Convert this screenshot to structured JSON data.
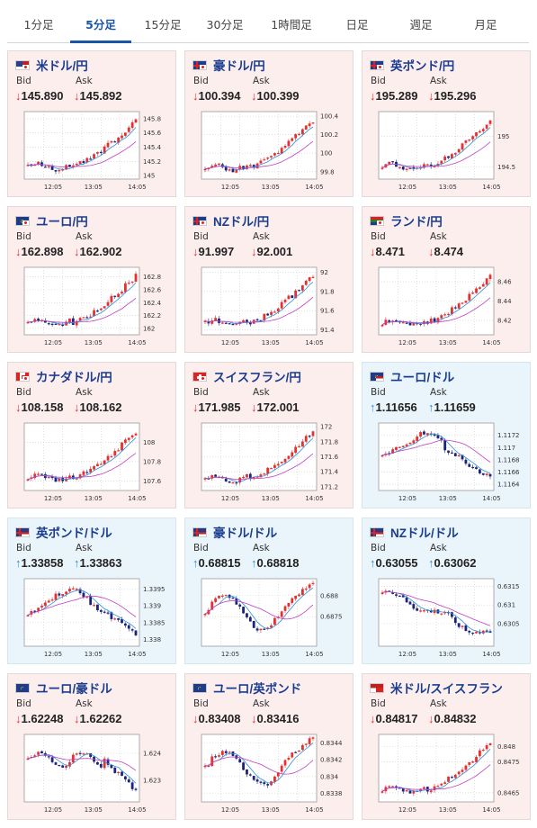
{
  "tabs": [
    {
      "label": "1分足",
      "active": false
    },
    {
      "label": "5分足",
      "active": true
    },
    {
      "label": "15分足",
      "active": false
    },
    {
      "label": "30分足",
      "active": false
    },
    {
      "label": "1時間足",
      "active": false
    },
    {
      "label": "日足",
      "active": false
    },
    {
      "label": "週足",
      "active": false
    },
    {
      "label": "月足",
      "active": false
    }
  ],
  "labels": {
    "bid": "Bid",
    "ask": "Ask"
  },
  "x_ticks": [
    "12:05",
    "13:05",
    "14:05"
  ],
  "colors": {
    "up_candle": "#e53030",
    "down_candle": "#1a237e",
    "ma_short": "#2b8fd6",
    "ma_long": "#c040c0",
    "title": "#1a3d8f",
    "panel_pink": "#fdeeee",
    "panel_blue": "#eaf4fb"
  },
  "cards": [
    {
      "pair": "米ドル/円",
      "flag": "us-flag",
      "theme": "pink",
      "bid": "145.890",
      "ask": "145.892",
      "direction": "down",
      "chart_data": {
        "type": "candlestick",
        "y_ticks": [
          "145.8",
          "145.6",
          "145.4",
          "145.2",
          "145"
        ],
        "ylim": [
          144.95,
          145.9
        ],
        "shape": "rise"
      }
    },
    {
      "pair": "豪ドル/円",
      "flag": "au-flag",
      "theme": "pink",
      "bid": "100.394",
      "ask": "100.399",
      "direction": "down",
      "chart_data": {
        "type": "candlestick",
        "y_ticks": [
          "100.4",
          "100.2",
          "100",
          "99.8"
        ],
        "ylim": [
          99.72,
          100.45
        ],
        "shape": "rise"
      }
    },
    {
      "pair": "英ポンド/円",
      "flag": "gb-flag",
      "theme": "pink",
      "bid": "195.289",
      "ask": "195.296",
      "direction": "down",
      "chart_data": {
        "type": "candlestick",
        "y_ticks": [
          "195",
          "194.5"
        ],
        "ylim": [
          194.3,
          195.4
        ],
        "shape": "rise"
      }
    },
    {
      "pair": "ユーロ/円",
      "flag": "eu-flag",
      "theme": "pink",
      "bid": "162.898",
      "ask": "162.902",
      "direction": "down",
      "chart_data": {
        "type": "candlestick",
        "y_ticks": [
          "162.8",
          "162.6",
          "162.4",
          "162.2",
          "162"
        ],
        "ylim": [
          161.9,
          162.95
        ],
        "shape": "rise"
      }
    },
    {
      "pair": "NZドル/円",
      "flag": "nz-flag",
      "theme": "pink",
      "bid": "91.997",
      "ask": "92.001",
      "direction": "down",
      "chart_data": {
        "type": "candlestick",
        "y_ticks": [
          "92",
          "91.8",
          "91.6",
          "91.4"
        ],
        "ylim": [
          91.35,
          92.05
        ],
        "shape": "rise"
      }
    },
    {
      "pair": "ランド/円",
      "flag": "za-flag",
      "theme": "pink",
      "bid": "8.471",
      "ask": "8.474",
      "direction": "down",
      "chart_data": {
        "type": "candlestick",
        "y_ticks": [
          "8.46",
          "8.44",
          "8.42"
        ],
        "ylim": [
          8.405,
          8.475
        ],
        "shape": "rise"
      }
    },
    {
      "pair": "カナダドル/円",
      "flag": "ca-flag",
      "theme": "pink",
      "bid": "108.158",
      "ask": "108.162",
      "direction": "down",
      "chart_data": {
        "type": "candlestick",
        "y_ticks": [
          "108",
          "107.8",
          "107.6"
        ],
        "ylim": [
          107.5,
          108.2
        ],
        "shape": "rise"
      }
    },
    {
      "pair": "スイスフラン/円",
      "flag": "ch-flag",
      "theme": "pink",
      "bid": "171.985",
      "ask": "172.001",
      "direction": "down",
      "chart_data": {
        "type": "candlestick",
        "y_ticks": [
          "172",
          "171.8",
          "171.6",
          "171.4",
          "171.2"
        ],
        "ylim": [
          171.15,
          172.05
        ],
        "shape": "rise"
      }
    },
    {
      "pair": "ユーロ/ドル",
      "flag": "eu-us-flag",
      "theme": "blue",
      "bid": "1.11656",
      "ask": "1.11659",
      "direction": "up",
      "chart_data": {
        "type": "candlestick",
        "y_ticks": [
          "1.1172",
          "1.117",
          "1.1168",
          "1.1166",
          "1.1164"
        ],
        "ylim": [
          1.1163,
          1.1174
        ],
        "shape": "humpfall"
      }
    },
    {
      "pair": "英ポンド/ドル",
      "flag": "gb-us-flag",
      "theme": "blue",
      "bid": "1.33858",
      "ask": "1.33863",
      "direction": "up",
      "chart_data": {
        "type": "candlestick",
        "y_ticks": [
          "1.3395",
          "1.339",
          "1.3385",
          "1.338"
        ],
        "ylim": [
          1.3378,
          1.3398
        ],
        "shape": "humpfall"
      }
    },
    {
      "pair": "豪ドル/ドル",
      "flag": "au-us-flag",
      "theme": "blue",
      "bid": "0.68815",
      "ask": "0.68818",
      "direction": "up",
      "chart_data": {
        "type": "candlestick",
        "y_ticks": [
          "0.688",
          "0.6875"
        ],
        "ylim": [
          0.6868,
          0.6884
        ],
        "shape": "wave"
      }
    },
    {
      "pair": "NZドル/ドル",
      "flag": "nz-us-flag",
      "theme": "blue",
      "bid": "0.63055",
      "ask": "0.63062",
      "direction": "up",
      "chart_data": {
        "type": "candlestick",
        "y_ticks": [
          "0.6315",
          "0.631",
          "0.6305"
        ],
        "ylim": [
          0.6299,
          0.6317
        ],
        "shape": "fall"
      }
    },
    {
      "pair": "ユーロ/豪ドル",
      "flag": "eu-au-flag",
      "theme": "pink",
      "bid": "1.62248",
      "ask": "1.62262",
      "direction": "down",
      "chart_data": {
        "type": "candlestick",
        "y_ticks": [
          "1.624",
          "1.623"
        ],
        "ylim": [
          1.6222,
          1.6247
        ],
        "shape": "flatfall"
      }
    },
    {
      "pair": "ユーロ/英ポンド",
      "flag": "eu-gb-flag",
      "theme": "pink",
      "bid": "0.83408",
      "ask": "0.83416",
      "direction": "down",
      "chart_data": {
        "type": "candlestick",
        "y_ticks": [
          "0.8344",
          "0.8342",
          "0.834",
          "0.8338"
        ],
        "ylim": [
          0.8337,
          0.8345
        ],
        "shape": "wave"
      }
    },
    {
      "pair": "米ドル/スイスフラン",
      "flag": "us-ch-flag",
      "theme": "pink",
      "bid": "0.84817",
      "ask": "0.84832",
      "direction": "down",
      "chart_data": {
        "type": "candlestick",
        "y_ticks": [
          "0.848",
          "0.8475",
          "0.8465"
        ],
        "ylim": [
          0.8462,
          0.8484
        ],
        "shape": "rise"
      }
    }
  ]
}
